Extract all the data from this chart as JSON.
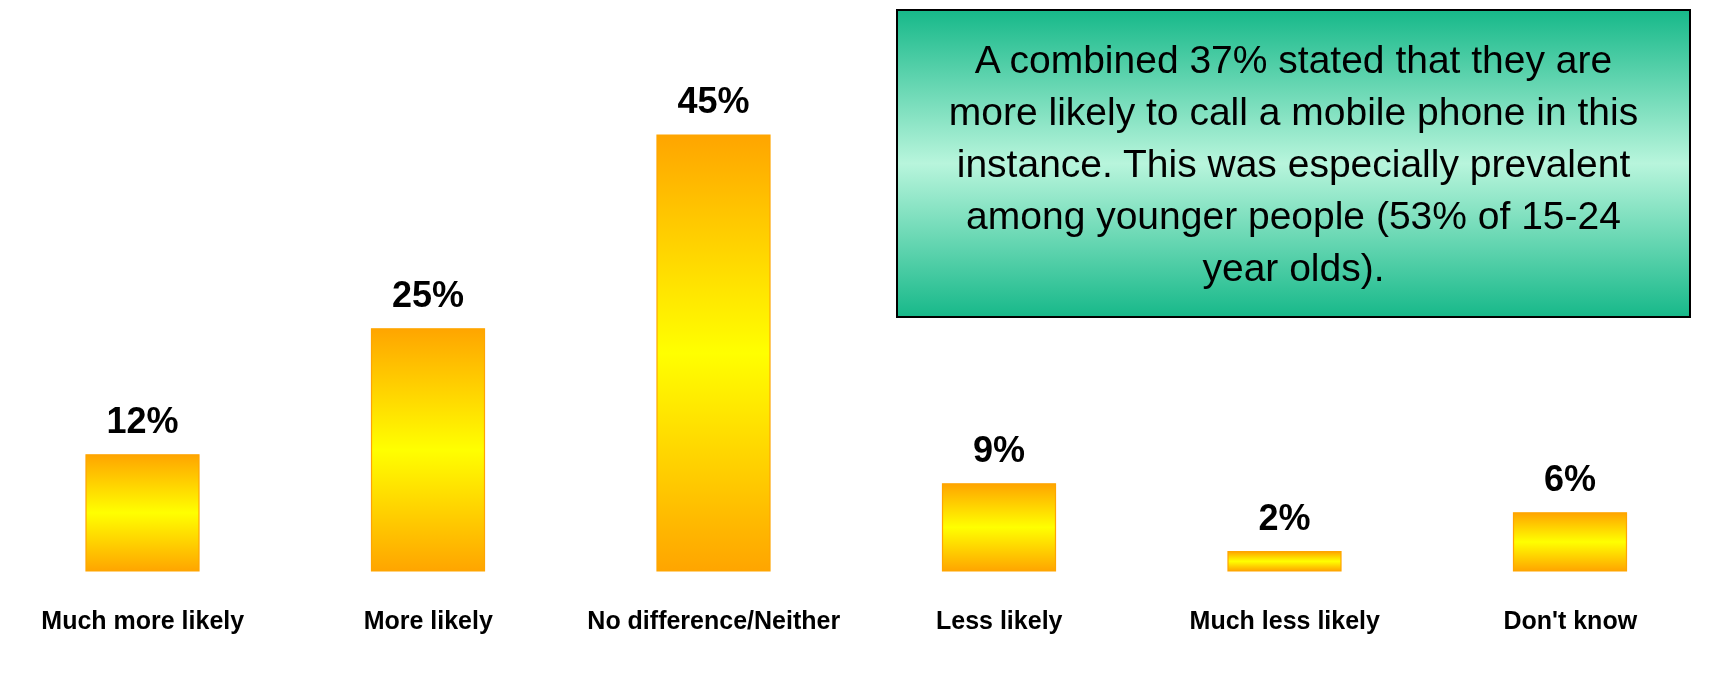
{
  "chart_data": {
    "type": "bar",
    "categories": [
      "Much more likely",
      "More likely",
      "No difference/Neither",
      "Less likely",
      "Much less likely",
      "Don't know"
    ],
    "values": [
      12,
      25,
      45,
      9,
      2,
      6
    ],
    "value_labels": [
      "12%",
      "25%",
      "45%",
      "9%",
      "2%",
      "6%"
    ],
    "color": "#ffa500",
    "grid": false,
    "legend": false,
    "annotations": [
      "A combined 37% stated that they are more likely to call a mobile phone in this instance. This was especially prevalent among younger people (53% of 15-24 year olds)."
    ]
  }
}
